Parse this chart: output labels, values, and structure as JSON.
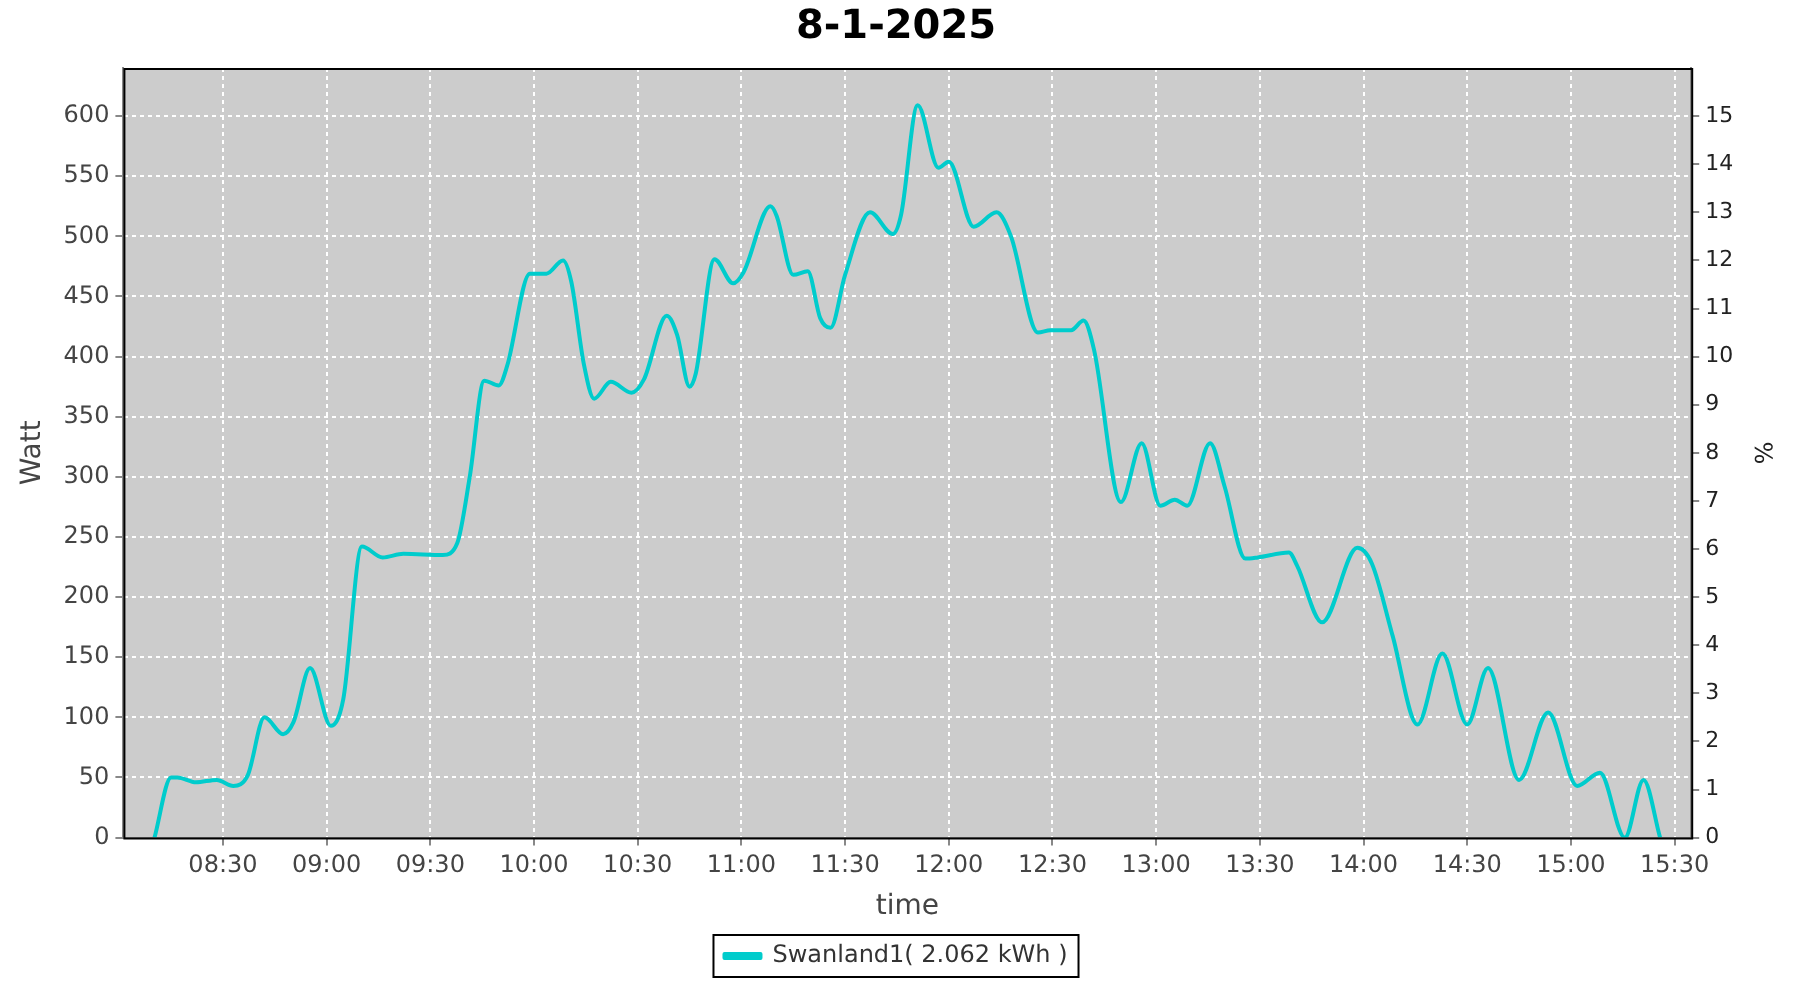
{
  "chart_data": {
    "type": "line",
    "title": "8-1-2025",
    "xlabel": "time",
    "ylabel": "Watt",
    "y2label": "%",
    "xlim": [
      8.02,
      15.58
    ],
    "xticks": [
      {
        "value": 8.5,
        "label": "08:30"
      },
      {
        "value": 9,
        "label": "09:00"
      },
      {
        "value": 9.5,
        "label": "09:30"
      },
      {
        "value": 10,
        "label": "10:00"
      },
      {
        "value": 10.5,
        "label": "10:30"
      },
      {
        "value": 11,
        "label": "11:00"
      },
      {
        "value": 11.5,
        "label": "11:30"
      },
      {
        "value": 12,
        "label": "12:00"
      },
      {
        "value": 12.5,
        "label": "12:30"
      },
      {
        "value": 13,
        "label": "13:00"
      },
      {
        "value": 13.5,
        "label": "13:30"
      },
      {
        "value": 14,
        "label": "14:00"
      },
      {
        "value": 14.5,
        "label": "14:30"
      },
      {
        "value": 15,
        "label": "15:00"
      },
      {
        "value": 15.5,
        "label": "15:30"
      }
    ],
    "ylim": [
      0,
      640
    ],
    "yticks": [
      0,
      50,
      100,
      150,
      200,
      250,
      300,
      350,
      400,
      450,
      500,
      550,
      600
    ],
    "y2lim": [
      0,
      16
    ],
    "y2ticks": [
      0,
      1,
      2,
      3,
      4,
      5,
      6,
      7,
      8,
      9,
      10,
      11,
      12,
      13,
      14,
      15
    ],
    "grid": true,
    "legend": "bottom",
    "marker": "none",
    "line_style": "solid",
    "series": [
      {
        "name": "Swanland1( 2.062 kWh )",
        "color": "#00cccc",
        "x": [
          8.17,
          8.25,
          8.28,
          8.37,
          8.47,
          8.55,
          8.62,
          8.7,
          8.79,
          8.84,
          8.92,
          9.02,
          9.08,
          9.17,
          9.27,
          9.37,
          9.56,
          9.63,
          9.69,
          9.76,
          9.83,
          9.87,
          9.98,
          10.06,
          10.14,
          10.18,
          10.24,
          10.29,
          10.37,
          10.47,
          10.53,
          10.64,
          10.69,
          10.75,
          10.78,
          10.87,
          10.96,
          11.01,
          11.14,
          11.17,
          11.25,
          11.32,
          11.38,
          11.43,
          11.5,
          11.62,
          11.73,
          11.77,
          11.85,
          11.95,
          12.0,
          12.12,
          12.23,
          12.3,
          12.43,
          12.49,
          12.59,
          12.65,
          12.7,
          12.83,
          12.93,
          13.02,
          13.09,
          13.15,
          13.26,
          13.33,
          13.43,
          13.49,
          13.64,
          13.68,
          13.8,
          13.97,
          14.04,
          14.14,
          14.26,
          14.38,
          14.5,
          14.6,
          14.75,
          14.89,
          15.03,
          15.14,
          15.26,
          15.35,
          15.43
        ],
        "values": [
          0,
          50,
          50,
          46,
          48,
          43,
          52,
          100,
          86,
          96,
          141,
          93,
          115,
          242,
          233,
          236,
          235,
          245,
          300,
          380,
          376,
          392,
          469,
          469,
          480,
          462,
          394,
          365,
          379,
          370,
          381,
          434,
          418,
          375,
          386,
          481,
          461,
          470,
          525,
          517,
          468,
          471,
          432,
          424,
          468,
          520,
          502,
          518,
          609,
          557,
          562,
          508,
          520,
          500,
          420,
          422,
          422,
          430,
          406,
          279,
          328,
          276,
          281,
          276,
          328,
          292,
          232,
          233,
          237,
          226,
          179,
          241,
          228,
          168,
          94,
          153,
          94,
          141,
          48,
          104,
          43,
          54,
          0,
          48,
          0
        ]
      }
    ]
  }
}
